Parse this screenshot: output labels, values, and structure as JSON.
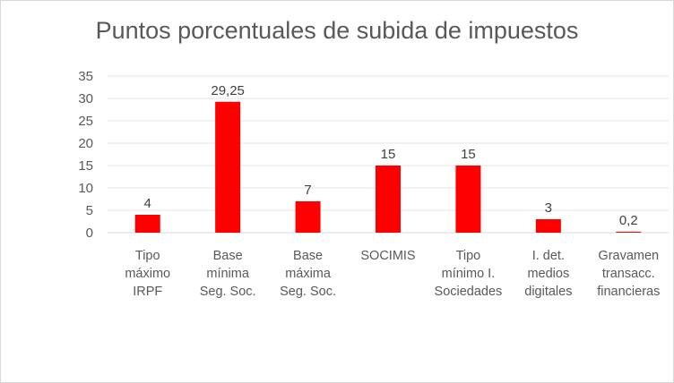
{
  "chart_data": {
    "type": "bar",
    "title": "Puntos porcentuales de subida de impuestos",
    "categories": [
      [
        "Tipo",
        "máximo",
        "IRPF"
      ],
      [
        "Base",
        "mínima",
        "Seg. Soc."
      ],
      [
        "Base",
        "máxima",
        "Seg. Soc."
      ],
      [
        "SOCIMIS"
      ],
      [
        "Tipo",
        "mínimo I.",
        "Sociedades"
      ],
      [
        "I. det.",
        "medios",
        "digitales"
      ],
      [
        "Gravamen",
        "transacc.",
        "financieras"
      ]
    ],
    "values": [
      4,
      29.25,
      7,
      15,
      15,
      3,
      0.2
    ],
    "data_labels": [
      "4",
      "29,25",
      "7",
      "15",
      "15",
      "3",
      "0,2"
    ],
    "yticks": [
      "0",
      "5",
      "10",
      "15",
      "20",
      "25",
      "30",
      "35"
    ],
    "ylim": [
      0,
      35
    ],
    "grid": true,
    "bar_color": "#ff0000",
    "xlabel": "",
    "ylabel": ""
  }
}
